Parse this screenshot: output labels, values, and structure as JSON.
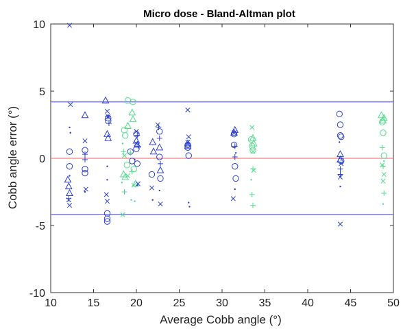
{
  "chart_data": {
    "type": "scatter",
    "title": "Micro dose - Bland-Altman plot",
    "xlabel": "Average Cobb angle (°)",
    "ylabel": "Cobb angle error (°)",
    "xlim": [
      10,
      50
    ],
    "ylim": [
      -10,
      10
    ],
    "xticks": [
      "10",
      "15",
      "20",
      "25",
      "30",
      "35",
      "40",
      "45",
      "50"
    ],
    "yticks": [
      "10",
      "5",
      "0",
      "-5",
      "-10"
    ],
    "grid": false,
    "legend": "none",
    "reference_lines": [
      {
        "y": 4.2,
        "color": "#6a6ae8"
      },
      {
        "y": 0,
        "color": "#f08080"
      },
      {
        "y": -4.2,
        "color": "#6a6ae8"
      }
    ],
    "colors": {
      "blue": "#2a3fd0",
      "mid": "#2b8fc8",
      "teal": "#3cc8a0",
      "green": "#4fdc8a"
    },
    "series": [
      {
        "marker": "circle",
        "color": "#2a3fd0",
        "points": [
          [
            12.2,
            0.5
          ],
          [
            12.2,
            -0.6
          ],
          [
            14,
            0.6
          ],
          [
            14,
            -0.8
          ],
          [
            14,
            -1.1
          ],
          [
            16.6,
            -4.1
          ],
          [
            16.6,
            -4.5
          ],
          [
            16.6,
            -4.7
          ],
          [
            16.7,
            2.8
          ],
          [
            16.7,
            3.0
          ],
          [
            19.3,
            0.5
          ],
          [
            19.5,
            -0.2
          ],
          [
            20,
            1.8
          ],
          [
            20,
            0.7
          ],
          [
            20.1,
            -0.4
          ],
          [
            21.8,
            -1.2
          ],
          [
            22.7,
            2.0
          ],
          [
            22.7,
            0.1
          ],
          [
            22.8,
            -1.5
          ],
          [
            26,
            1.0
          ],
          [
            26,
            0.8
          ],
          [
            26.1,
            0.2
          ],
          [
            31.4,
            1.8
          ],
          [
            31.4,
            1.0
          ],
          [
            31.5,
            -0.6
          ],
          [
            31.6,
            -1.5
          ],
          [
            43.7,
            3.3
          ],
          [
            43.8,
            2.5
          ],
          [
            43.8,
            1.7
          ],
          [
            43.9,
            1.6
          ],
          [
            43.9,
            -0.2
          ]
        ]
      },
      {
        "marker": "circle",
        "color": "#4fdc8a",
        "points": [
          [
            18.6,
            2.1
          ],
          [
            18.7,
            1.7
          ],
          [
            19,
            4.3
          ],
          [
            19.6,
            4.2
          ],
          [
            18.9,
            -0.5
          ],
          [
            19.7,
            -0.8
          ],
          [
            33.4,
            1.4
          ],
          [
            33.5,
            0.9
          ],
          [
            33.6,
            0.6
          ],
          [
            48.7,
            2.7
          ],
          [
            48.8,
            1.9
          ],
          [
            48.9,
            0.2
          ]
        ]
      },
      {
        "marker": "triangle",
        "color": "#2a3fd0",
        "points": [
          [
            12,
            -1.6
          ],
          [
            12.1,
            -2.1
          ],
          [
            12.2,
            -2.6
          ],
          [
            14,
            3.2
          ],
          [
            16.4,
            4.3
          ],
          [
            16.6,
            1.8
          ],
          [
            16.7,
            1.5
          ],
          [
            20,
            1.3
          ],
          [
            20.1,
            1.0
          ],
          [
            21.9,
            1.2
          ],
          [
            22,
            0.5
          ],
          [
            22.7,
            0.8
          ],
          [
            22.8,
            -0.9
          ],
          [
            26,
            1.1
          ],
          [
            26,
            0.9
          ],
          [
            31.5,
            2.1
          ],
          [
            31.4,
            1.9
          ],
          [
            43.8,
            0.3
          ],
          [
            43.8,
            -0.1
          ]
        ]
      },
      {
        "marker": "triangle",
        "color": "#4fdc8a",
        "points": [
          [
            18.5,
            -1.2
          ],
          [
            18.7,
            -1.4
          ],
          [
            19,
            2.4
          ],
          [
            19.5,
            3.4
          ],
          [
            19.6,
            2.9
          ],
          [
            19.9,
            -1.9
          ],
          [
            33.6,
            1.5
          ],
          [
            33.7,
            1.1
          ],
          [
            48.6,
            3.2
          ],
          [
            48.8,
            2.8
          ],
          [
            48.9,
            3.0
          ]
        ]
      },
      {
        "marker": "x",
        "color": "#2a3fd0",
        "points": [
          [
            12.2,
            9.9
          ],
          [
            12.3,
            4.0
          ],
          [
            12.1,
            -3.1
          ],
          [
            12.2,
            -3.5
          ],
          [
            14,
            1.3
          ],
          [
            14.1,
            -2.3
          ],
          [
            16.6,
            3.5
          ],
          [
            16.7,
            3.1
          ],
          [
            16.5,
            -2.7
          ],
          [
            16.6,
            -3.2
          ],
          [
            20,
            2.0
          ],
          [
            20,
            1.1
          ],
          [
            20.2,
            -1.9
          ],
          [
            21.8,
            -2.2
          ],
          [
            22.5,
            2.5
          ],
          [
            22.8,
            -3.4
          ],
          [
            26,
            3.6
          ],
          [
            26.1,
            1.6
          ],
          [
            26,
            1.2
          ],
          [
            31.3,
            -3.0
          ],
          [
            31.4,
            1.9
          ],
          [
            43.8,
            -4.9
          ],
          [
            43.9,
            -0.4
          ],
          [
            43.8,
            -1.4
          ]
        ]
      },
      {
        "marker": "x",
        "color": "#4fdc8a",
        "points": [
          [
            18.4,
            -4.2
          ],
          [
            18.6,
            0.2
          ],
          [
            19,
            -1.3
          ],
          [
            19.7,
            -2.0
          ],
          [
            33.5,
            2.3
          ],
          [
            33.6,
            0.5
          ],
          [
            33.7,
            -0.9
          ],
          [
            48.7,
            -0.5
          ],
          [
            48.8,
            -1.7
          ],
          [
            48.9,
            -1.2
          ]
        ]
      },
      {
        "marker": "plus",
        "color": "#2a3fd0",
        "points": [
          [
            12.1,
            -3.0
          ],
          [
            14,
            0.3
          ],
          [
            14,
            -0.1
          ],
          [
            16.7,
            3.1
          ],
          [
            16.8,
            2.6
          ],
          [
            20.1,
            1.7
          ],
          [
            20.2,
            0.9
          ],
          [
            22.6,
            2.3
          ],
          [
            22.7,
            1.5
          ],
          [
            22.8,
            -0.4
          ],
          [
            31.5,
            0.9
          ],
          [
            31.5,
            0.1
          ],
          [
            43.8,
            -0.8
          ],
          [
            43.8,
            -1.2
          ],
          [
            43.9,
            0.0
          ]
        ]
      },
      {
        "marker": "plus",
        "color": "#4fdc8a",
        "points": [
          [
            18.5,
            0.5
          ],
          [
            18.6,
            -2.5
          ],
          [
            19.3,
            0.4
          ],
          [
            19.5,
            -1.0
          ],
          [
            33.6,
            -0.8
          ],
          [
            33.5,
            -2.7
          ],
          [
            33.6,
            -3.5
          ],
          [
            48.7,
            0.8
          ],
          [
            48.8,
            -0.6
          ],
          [
            48.9,
            -2.6
          ]
        ]
      },
      {
        "marker": "dot",
        "color": "#2a3fd0",
        "points": [
          [
            12.2,
            2.3
          ],
          [
            12.3,
            1.9
          ],
          [
            12.2,
            -1.3
          ],
          [
            14,
            -2.5
          ],
          [
            16.6,
            -0.6
          ],
          [
            16.6,
            -1.6
          ],
          [
            19.8,
            -0.1
          ],
          [
            20.1,
            -2.0
          ],
          [
            21.9,
            -3.1
          ],
          [
            22.7,
            -2.4
          ],
          [
            26.1,
            -3.3
          ],
          [
            26.2,
            -3.6
          ],
          [
            31.5,
            -2.3
          ],
          [
            31.6,
            0.4
          ],
          [
            43.8,
            -2.1
          ],
          [
            43.7,
            1.2
          ]
        ]
      },
      {
        "marker": "dot",
        "color": "#4fdc8a",
        "points": [
          [
            18.3,
            -1.8
          ],
          [
            18.4,
            1.1
          ],
          [
            19.4,
            -3.1
          ],
          [
            19.8,
            -3.2
          ],
          [
            33.4,
            -1.6
          ],
          [
            48.8,
            -3.4
          ],
          [
            48.9,
            -0.2
          ]
        ]
      }
    ]
  }
}
